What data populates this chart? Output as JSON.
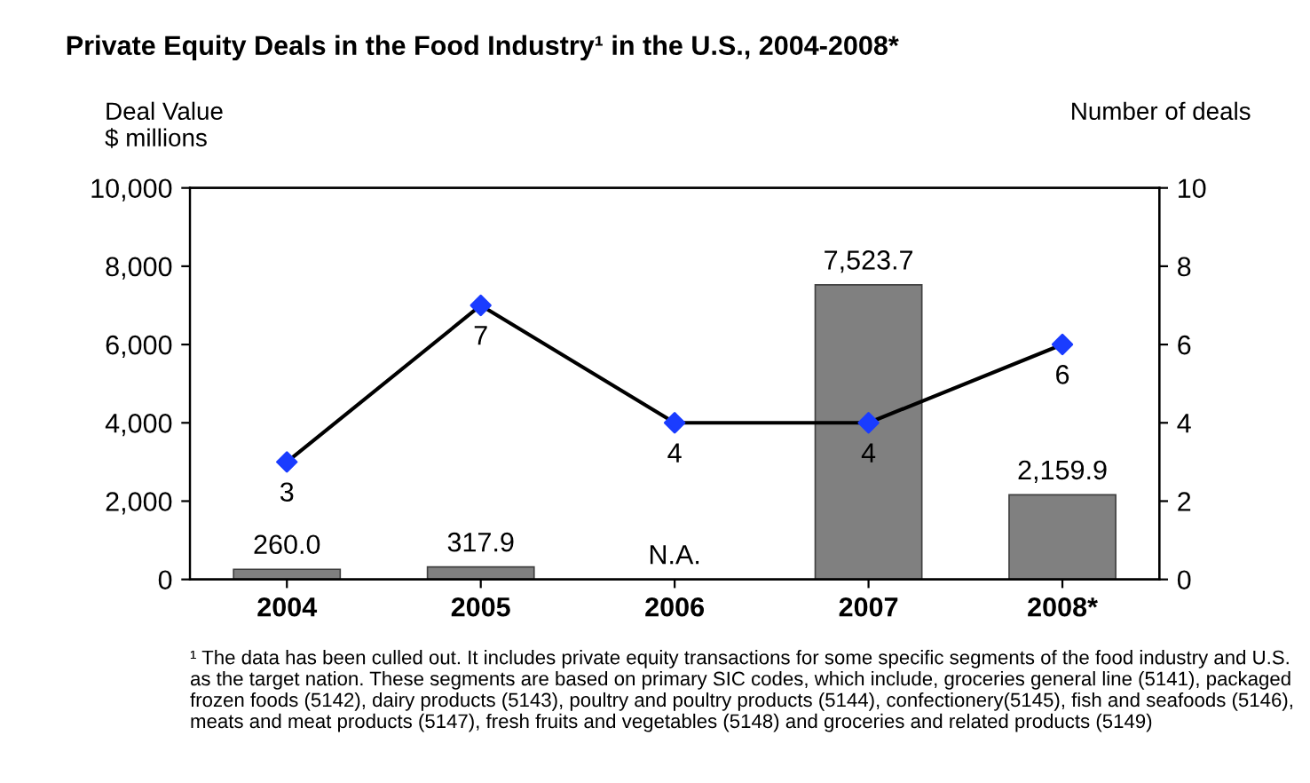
{
  "chart_data": {
    "type": "bar",
    "title": "Private Equity Deals in the Food Industry¹ in the U.S., 2004-2008*",
    "ylabel": "Deal Value\n$ millions",
    "y2label": "Number of deals",
    "categories": [
      "2004",
      "2005",
      "2006",
      "2007",
      "2008*"
    ],
    "series": [
      {
        "color": "#808080",
        "values": [
          260.0,
          317.9,
          null,
          7523.7,
          2159.9
        ],
        "value_labels": [
          "260.0",
          "317.9",
          "N.A.",
          "7,523.7",
          "2,159.9"
        ]
      },
      {
        "type": "line",
        "axis": "y2",
        "color": "#000000",
        "colors": [
          "#1a3cff",
          "#1a3cff",
          "#1a3cff",
          "#1a3cff",
          "#1a3cff"
        ],
        "marker": "diamond",
        "values": [
          3,
          7,
          4,
          4,
          6
        ],
        "value_labels": [
          "3",
          "7",
          "4",
          "4",
          "6"
        ]
      }
    ],
    "ylim": [
      0,
      10000
    ],
    "yticks": [
      {
        "value": 0,
        "label": "0"
      },
      {
        "value": 2000,
        "label": "2,000"
      },
      {
        "value": 4000,
        "label": "4,000"
      },
      {
        "value": 6000,
        "label": "6,000"
      },
      {
        "value": 8000,
        "label": "8,000"
      },
      {
        "value": 10000,
        "label": "10,000"
      }
    ],
    "y2lim": [
      0,
      10
    ],
    "y2ticks": [
      0,
      2,
      4,
      6,
      8,
      10
    ],
    "grid": false,
    "legend": false,
    "annotations": [
      "¹ The data has been culled out. It includes private equity transactions for some specific segments of the food industry and U.S. as the target nation. These segments are based on primary SIC codes, which include, groceries general line (5141), packaged frozen foods (5142), dairy products (5143), poultry and poultry products (5144), confectionery(5145), fish and seafoods (5146), meats and meat products (5147), fresh fruits and vegetables (5148) and groceries and related products (5149)"
    ]
  }
}
